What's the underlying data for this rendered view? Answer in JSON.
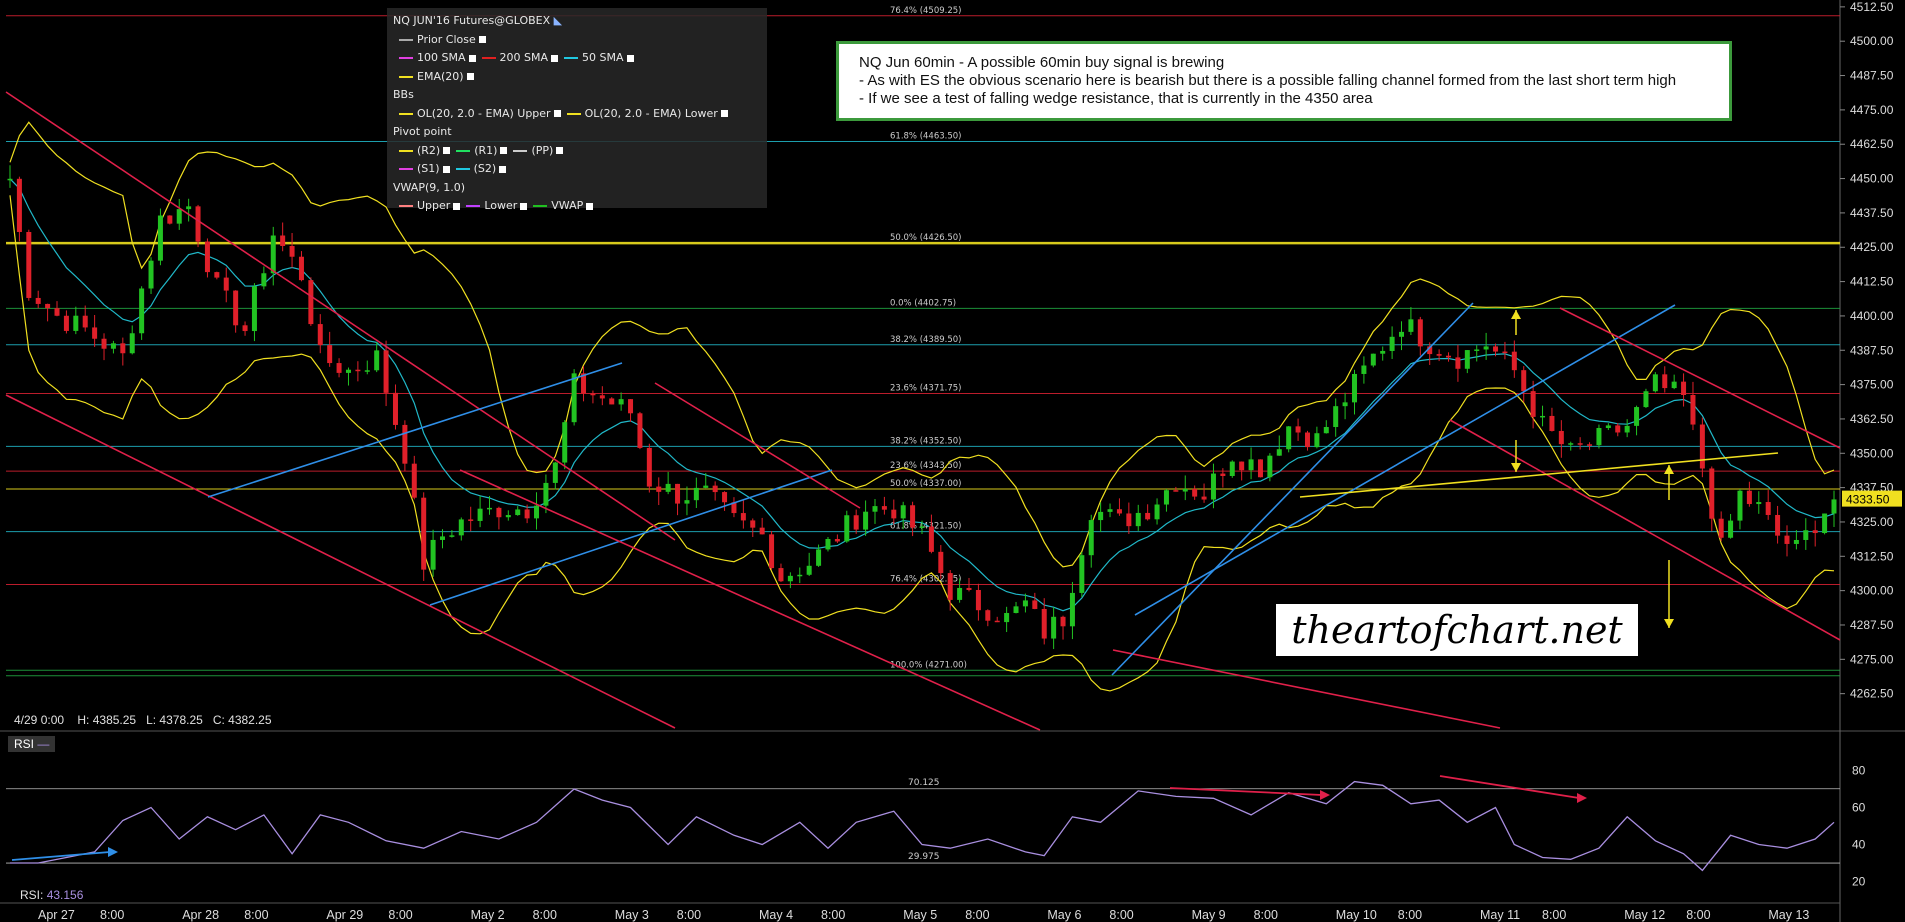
{
  "legend": {
    "title": "NQ JUN'16 Futures@GLOBEX",
    "prior_close": "Prior Close",
    "sma100": "100 SMA",
    "sma200": "200 SMA",
    "sma50": "50 SMA",
    "ema": "EMA(20)",
    "bbs": "BBs",
    "bb_upper": "OL(20, 2.0 - EMA) Upper",
    "bb_lower": "OL(20, 2.0 - EMA) Lower",
    "pivot": "Pivot point",
    "r2": "(R2)",
    "r1": "(R1)",
    "pp": "(PP)",
    "s1": "(S1)",
    "s2": "(S2)",
    "vwap": "VWAP(9, 1.0)",
    "vwap_upper": "Upper",
    "vwap_lower": "Lower",
    "vwap_vwap": "VWAP"
  },
  "note": {
    "line1": "NQ Jun 60min - A possible 60min buy signal is brewing",
    "line2": "- As with ES the obvious scenario here is bearish but there is a possible falling channel formed from the last short term high",
    "line3": "- If we see a test of falling wedge resistance, that is currently in the 4350 area"
  },
  "watermark": "theartofchart.net",
  "ohlc": "4/29 0:00    H: 4385.25   L: 4378.25   C: 4382.25",
  "rsi": {
    "label": "RSI",
    "value_label": "RSI:",
    "value": "43.156"
  },
  "colors": {
    "up": "#22c322",
    "down": "#e0202a",
    "channel_blue": "#2f8fe8",
    "channel_red": "#e0204a",
    "yellow": "#f0e020",
    "rsi_line": "#a98fe0"
  },
  "chart_data": {
    "type": "candlestick",
    "title": "NQ JUN'16 Futures@GLOBEX",
    "timeframe": "60min",
    "y_range": [
      4250,
      4515
    ],
    "y_ticks": [
      "4512.50",
      "4500.00",
      "4487.50",
      "4475.00",
      "4462.50",
      "4450.00",
      "4437.50",
      "4425.00",
      "4412.50",
      "4400.00",
      "4387.50",
      "4375.00",
      "4362.50",
      "4350.00",
      "4337.50",
      "4325.00",
      "4312.50",
      "4300.00",
      "4287.50",
      "4275.00",
      "4262.50"
    ],
    "last_price": "4333.50",
    "x_labels": [
      "Apr 27",
      "8:00",
      "Apr 28",
      "8:00",
      "Apr 29",
      "8:00",
      "May 2",
      "8:00",
      "May 3",
      "8:00",
      "May 4",
      "8:00",
      "May 5",
      "8:00",
      "May 6",
      "8:00",
      "May 9",
      "8:00",
      "May 10",
      "8:00",
      "May 11",
      "8:00",
      "May 12",
      "8:00",
      "May 13"
    ],
    "fib_labels": [
      {
        "text": "76.4% (4509.25)",
        "price": 4509.25
      },
      {
        "text": "61.8% (4463.50)",
        "price": 4463.5
      },
      {
        "text": "50.0% (4426.50)",
        "price": 4426.5
      },
      {
        "text": "0.0% (4402.75)",
        "price": 4402.75
      },
      {
        "text": "38.2% (4389.50)",
        "price": 4389.5
      },
      {
        "text": "23.6% (4371.75)",
        "price": 4371.75
      },
      {
        "text": "38.2% (4352.50)",
        "price": 4352.5
      },
      {
        "text": "23.6% (4343.50)",
        "price": 4343.5
      },
      {
        "text": "50.0% (4337.00)",
        "price": 4337.0
      },
      {
        "text": "61.8% (4321.50)",
        "price": 4321.5
      },
      {
        "text": "76.4% (4302.25)",
        "price": 4302.25
      },
      {
        "text": "100.0% (4271.00)",
        "price": 4271.0
      }
    ],
    "rsi_ticks": [
      "80",
      "60",
      "40",
      "20"
    ],
    "rsi_levels": [
      {
        "text": "70.125",
        "value": 70.125
      },
      {
        "text": "29.975",
        "value": 29.975
      }
    ],
    "price_path": [
      [
        0,
        4450
      ],
      [
        2,
        4410
      ],
      [
        5,
        4400
      ],
      [
        8,
        4395
      ],
      [
        12,
        4385
      ],
      [
        16,
        4435
      ],
      [
        19,
        4440
      ],
      [
        22,
        4410
      ],
      [
        25,
        4395
      ],
      [
        28,
        4430
      ],
      [
        31,
        4415
      ],
      [
        33,
        4385
      ],
      [
        36,
        4380
      ],
      [
        39,
        4385
      ],
      [
        42,
        4350
      ],
      [
        44,
        4310
      ],
      [
        46,
        4320
      ],
      [
        48,
        4325
      ],
      [
        52,
        4330
      ],
      [
        55,
        4330
      ],
      [
        58,
        4345
      ],
      [
        60,
        4375
      ],
      [
        63,
        4370
      ],
      [
        66,
        4365
      ],
      [
        68,
        4340
      ],
      [
        71,
        4335
      ],
      [
        74,
        4335
      ],
      [
        77,
        4325
      ],
      [
        80,
        4320
      ],
      [
        82,
        4305
      ],
      [
        85,
        4310
      ],
      [
        88,
        4320
      ],
      [
        91,
        4330
      ],
      [
        94,
        4330
      ],
      [
        97,
        4320
      ],
      [
        100,
        4300
      ],
      [
        103,
        4295
      ],
      [
        106,
        4290
      ],
      [
        108,
        4295
      ],
      [
        110,
        4285
      ],
      [
        112,
        4290
      ],
      [
        115,
        4330
      ],
      [
        118,
        4325
      ],
      [
        121,
        4330
      ],
      [
        124,
        4340
      ],
      [
        127,
        4335
      ],
      [
        130,
        4350
      ],
      [
        133,
        4345
      ],
      [
        136,
        4360
      ],
      [
        139,
        4355
      ],
      [
        142,
        4370
      ],
      [
        145,
        4385
      ],
      [
        148,
        4398
      ],
      [
        151,
        4390
      ],
      [
        154,
        4385
      ],
      [
        157,
        4390
      ],
      [
        160,
        4380
      ],
      [
        163,
        4360
      ],
      [
        166,
        4350
      ],
      [
        169,
        4355
      ],
      [
        172,
        4360
      ],
      [
        175,
        4375
      ],
      [
        178,
        4370
      ],
      [
        180,
        4345
      ],
      [
        182,
        4315
      ],
      [
        184,
        4335
      ],
      [
        186,
        4330
      ],
      [
        188,
        4320
      ],
      [
        190,
        4315
      ],
      [
        192,
        4325
      ],
      [
        194,
        4333.5
      ]
    ],
    "rsi_path": [
      [
        0,
        30
      ],
      [
        3,
        30
      ],
      [
        6,
        33
      ],
      [
        9,
        36
      ],
      [
        12,
        53
      ],
      [
        15,
        60
      ],
      [
        18,
        43
      ],
      [
        21,
        55
      ],
      [
        24,
        48
      ],
      [
        27,
        56
      ],
      [
        30,
        35
      ],
      [
        33,
        56
      ],
      [
        36,
        52
      ],
      [
        40,
        42
      ],
      [
        44,
        38
      ],
      [
        48,
        47
      ],
      [
        52,
        43
      ],
      [
        56,
        52
      ],
      [
        60,
        70
      ],
      [
        63,
        64
      ],
      [
        66,
        60
      ],
      [
        70,
        40
      ],
      [
        73,
        55
      ],
      [
        77,
        45
      ],
      [
        80,
        40
      ],
      [
        84,
        52
      ],
      [
        87,
        38
      ],
      [
        90,
        52
      ],
      [
        94,
        58
      ],
      [
        97,
        40
      ],
      [
        100,
        38
      ],
      [
        104,
        43
      ],
      [
        108,
        36
      ],
      [
        110,
        34
      ],
      [
        113,
        55
      ],
      [
        116,
        52
      ],
      [
        120,
        69
      ],
      [
        124,
        66
      ],
      [
        128,
        65
      ],
      [
        132,
        56
      ],
      [
        136,
        68
      ],
      [
        140,
        62
      ],
      [
        143,
        74
      ],
      [
        146,
        72
      ],
      [
        149,
        62
      ],
      [
        152,
        64
      ],
      [
        155,
        52
      ],
      [
        158,
        60
      ],
      [
        160,
        40
      ],
      [
        163,
        33
      ],
      [
        166,
        32
      ],
      [
        169,
        38
      ],
      [
        172,
        55
      ],
      [
        175,
        42
      ],
      [
        178,
        35
      ],
      [
        180,
        26
      ],
      [
        183,
        45
      ],
      [
        186,
        40
      ],
      [
        189,
        38
      ],
      [
        192,
        43
      ],
      [
        194,
        52
      ]
    ]
  }
}
